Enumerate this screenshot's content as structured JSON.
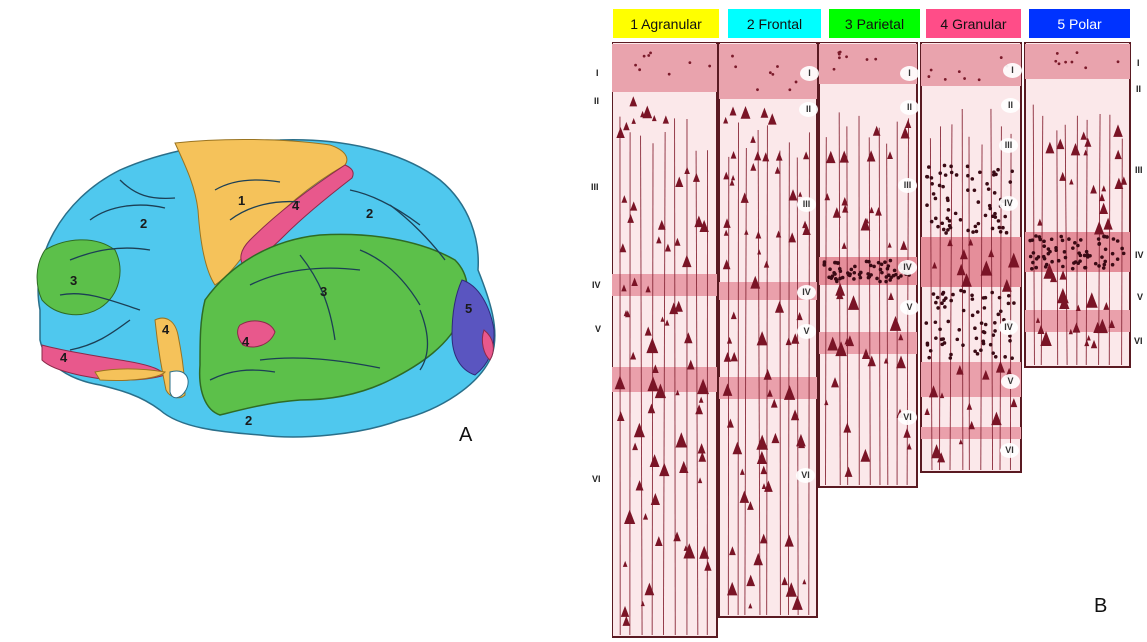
{
  "legend": [
    {
      "label": "1 Agranular",
      "color": "#ffff00"
    },
    {
      "label": "2 Frontal",
      "color": "#00ffff"
    },
    {
      "label": "3 Parietal",
      "color": "#00ff00"
    },
    {
      "label": "4 Granular",
      "color": "#ff4d88"
    },
    {
      "label": "5 Polar",
      "color": "#0033ff"
    }
  ],
  "panel_labels": {
    "a": "A",
    "b": "B"
  },
  "brain_region_numbers": [
    "1",
    "2",
    "2",
    "3",
    "3",
    "4",
    "4",
    "4",
    "4",
    "5",
    "2"
  ],
  "layer_labels_left": [
    "I",
    "II",
    "III",
    "IV",
    "V",
    "VI"
  ],
  "column_labels": [
    [
      "I",
      "II",
      "III",
      "IV",
      "V",
      "VI"
    ],
    [
      "I",
      "II",
      "III",
      "IV",
      "V",
      "VI"
    ],
    [
      "I",
      "II",
      "III",
      "IV",
      "IV",
      "V",
      "VI"
    ]
  ],
  "region_colors": {
    "agranular": "#f5c25a",
    "frontal": "#4fc8ee",
    "parietal": "#5cc04a",
    "granular": "#e8588c",
    "polar": "#5a55c0"
  }
}
